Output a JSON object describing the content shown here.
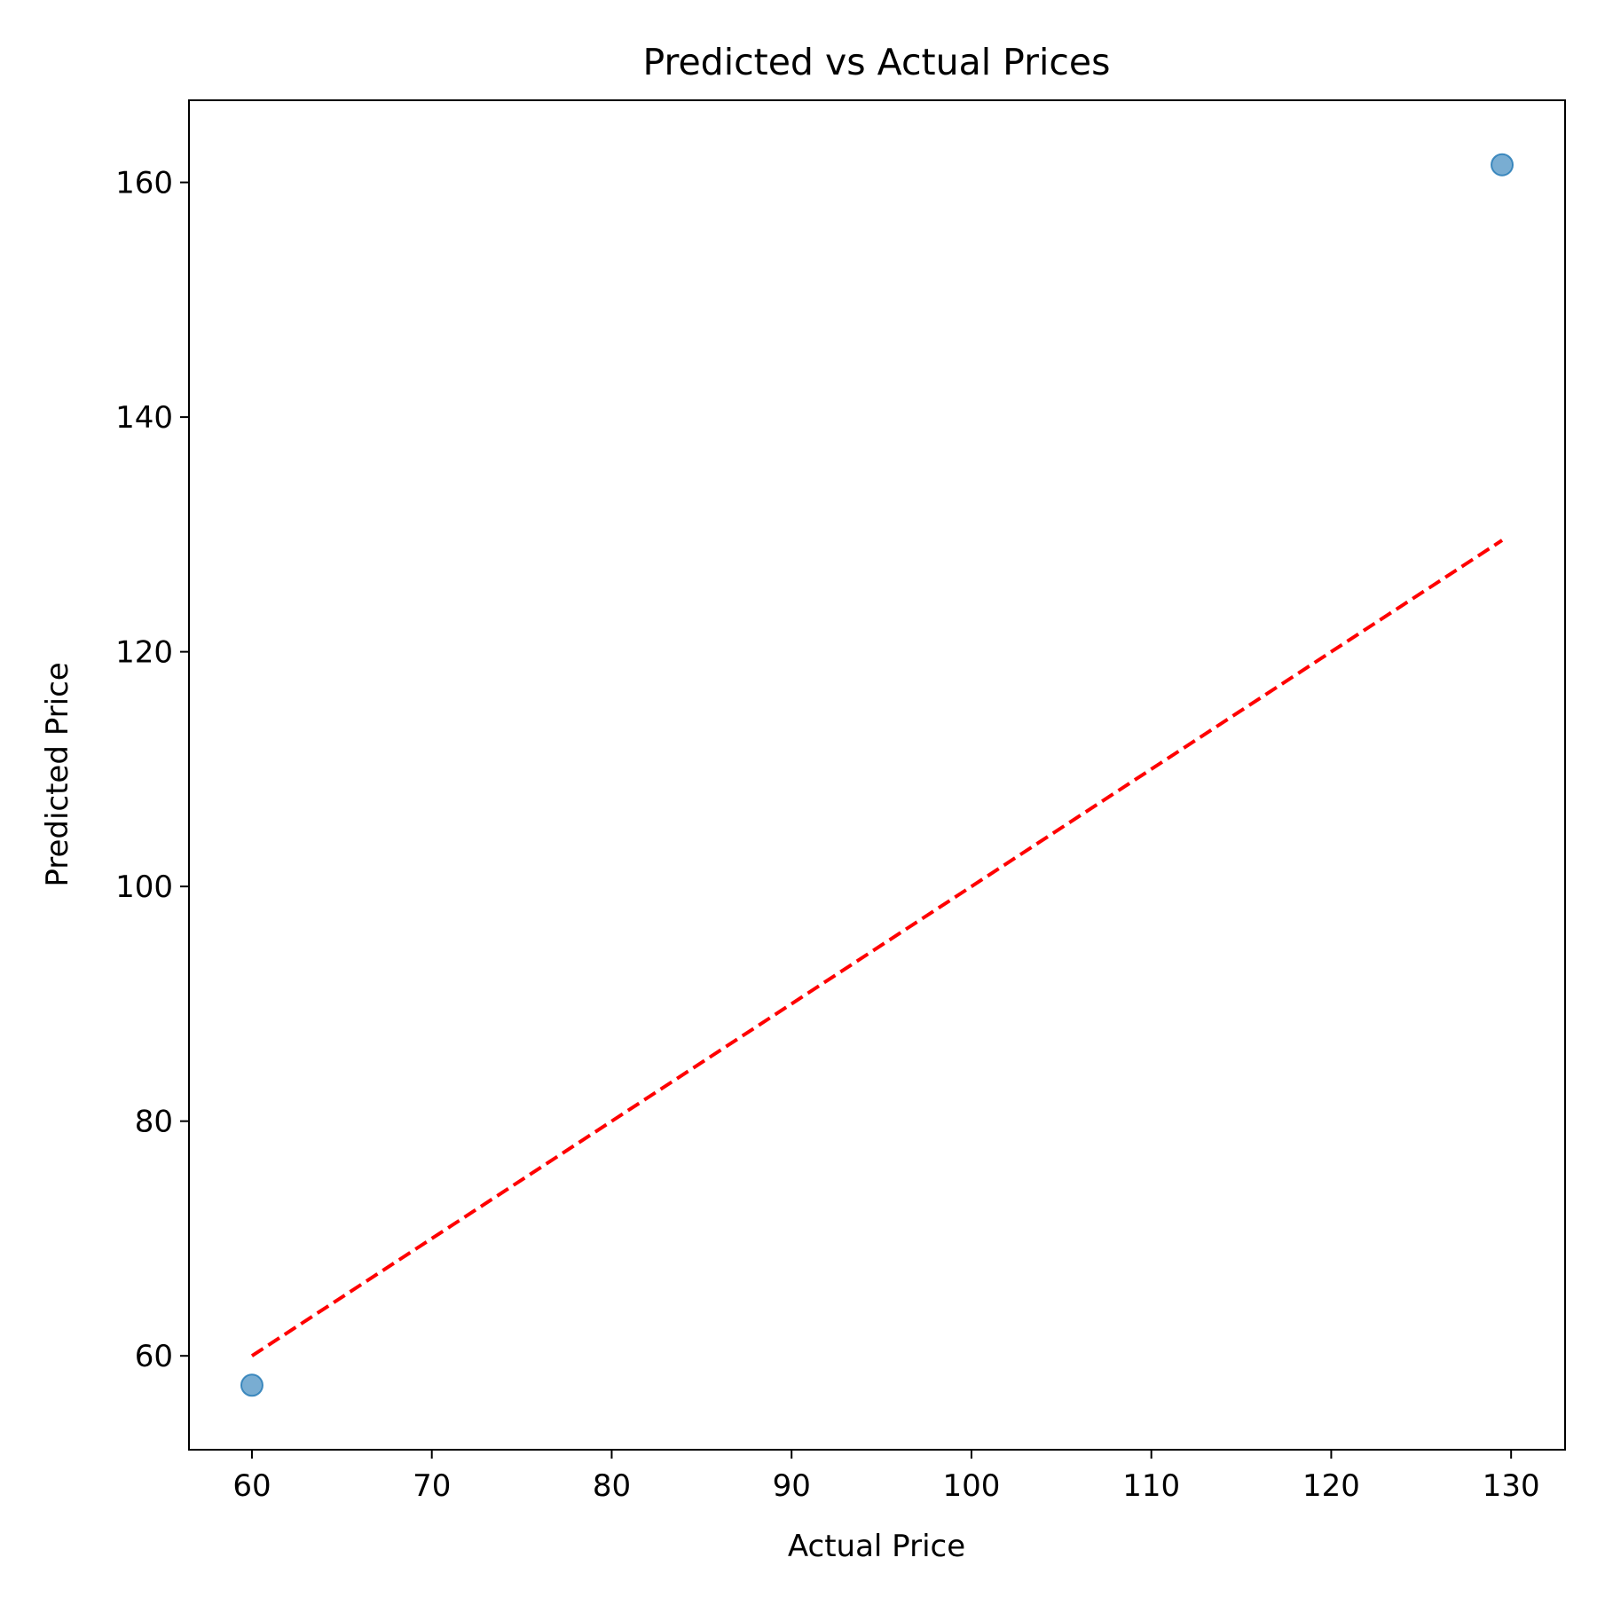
{
  "chart_data": {
    "type": "scatter",
    "title": "Predicted vs Actual Prices",
    "xlabel": "Actual Price",
    "ylabel": "Predicted Price",
    "xlim": [
      56.5,
      133.0
    ],
    "ylim": [
      52.0,
      167.0
    ],
    "xticks": [
      60,
      70,
      80,
      90,
      100,
      110,
      120,
      130
    ],
    "yticks": [
      60,
      80,
      100,
      120,
      140,
      160
    ],
    "grid": false,
    "series": [
      {
        "type": "scatter",
        "color": "#1f77b4",
        "points": [
          {
            "x": 60.0,
            "y": 57.5
          },
          {
            "x": 129.5,
            "y": 161.5
          }
        ]
      }
    ],
    "reference_line": {
      "style": "dashed",
      "color": "#ff0000",
      "points": [
        {
          "x": 60.0,
          "y": 60.0
        },
        {
          "x": 129.5,
          "y": 129.5
        }
      ]
    }
  }
}
